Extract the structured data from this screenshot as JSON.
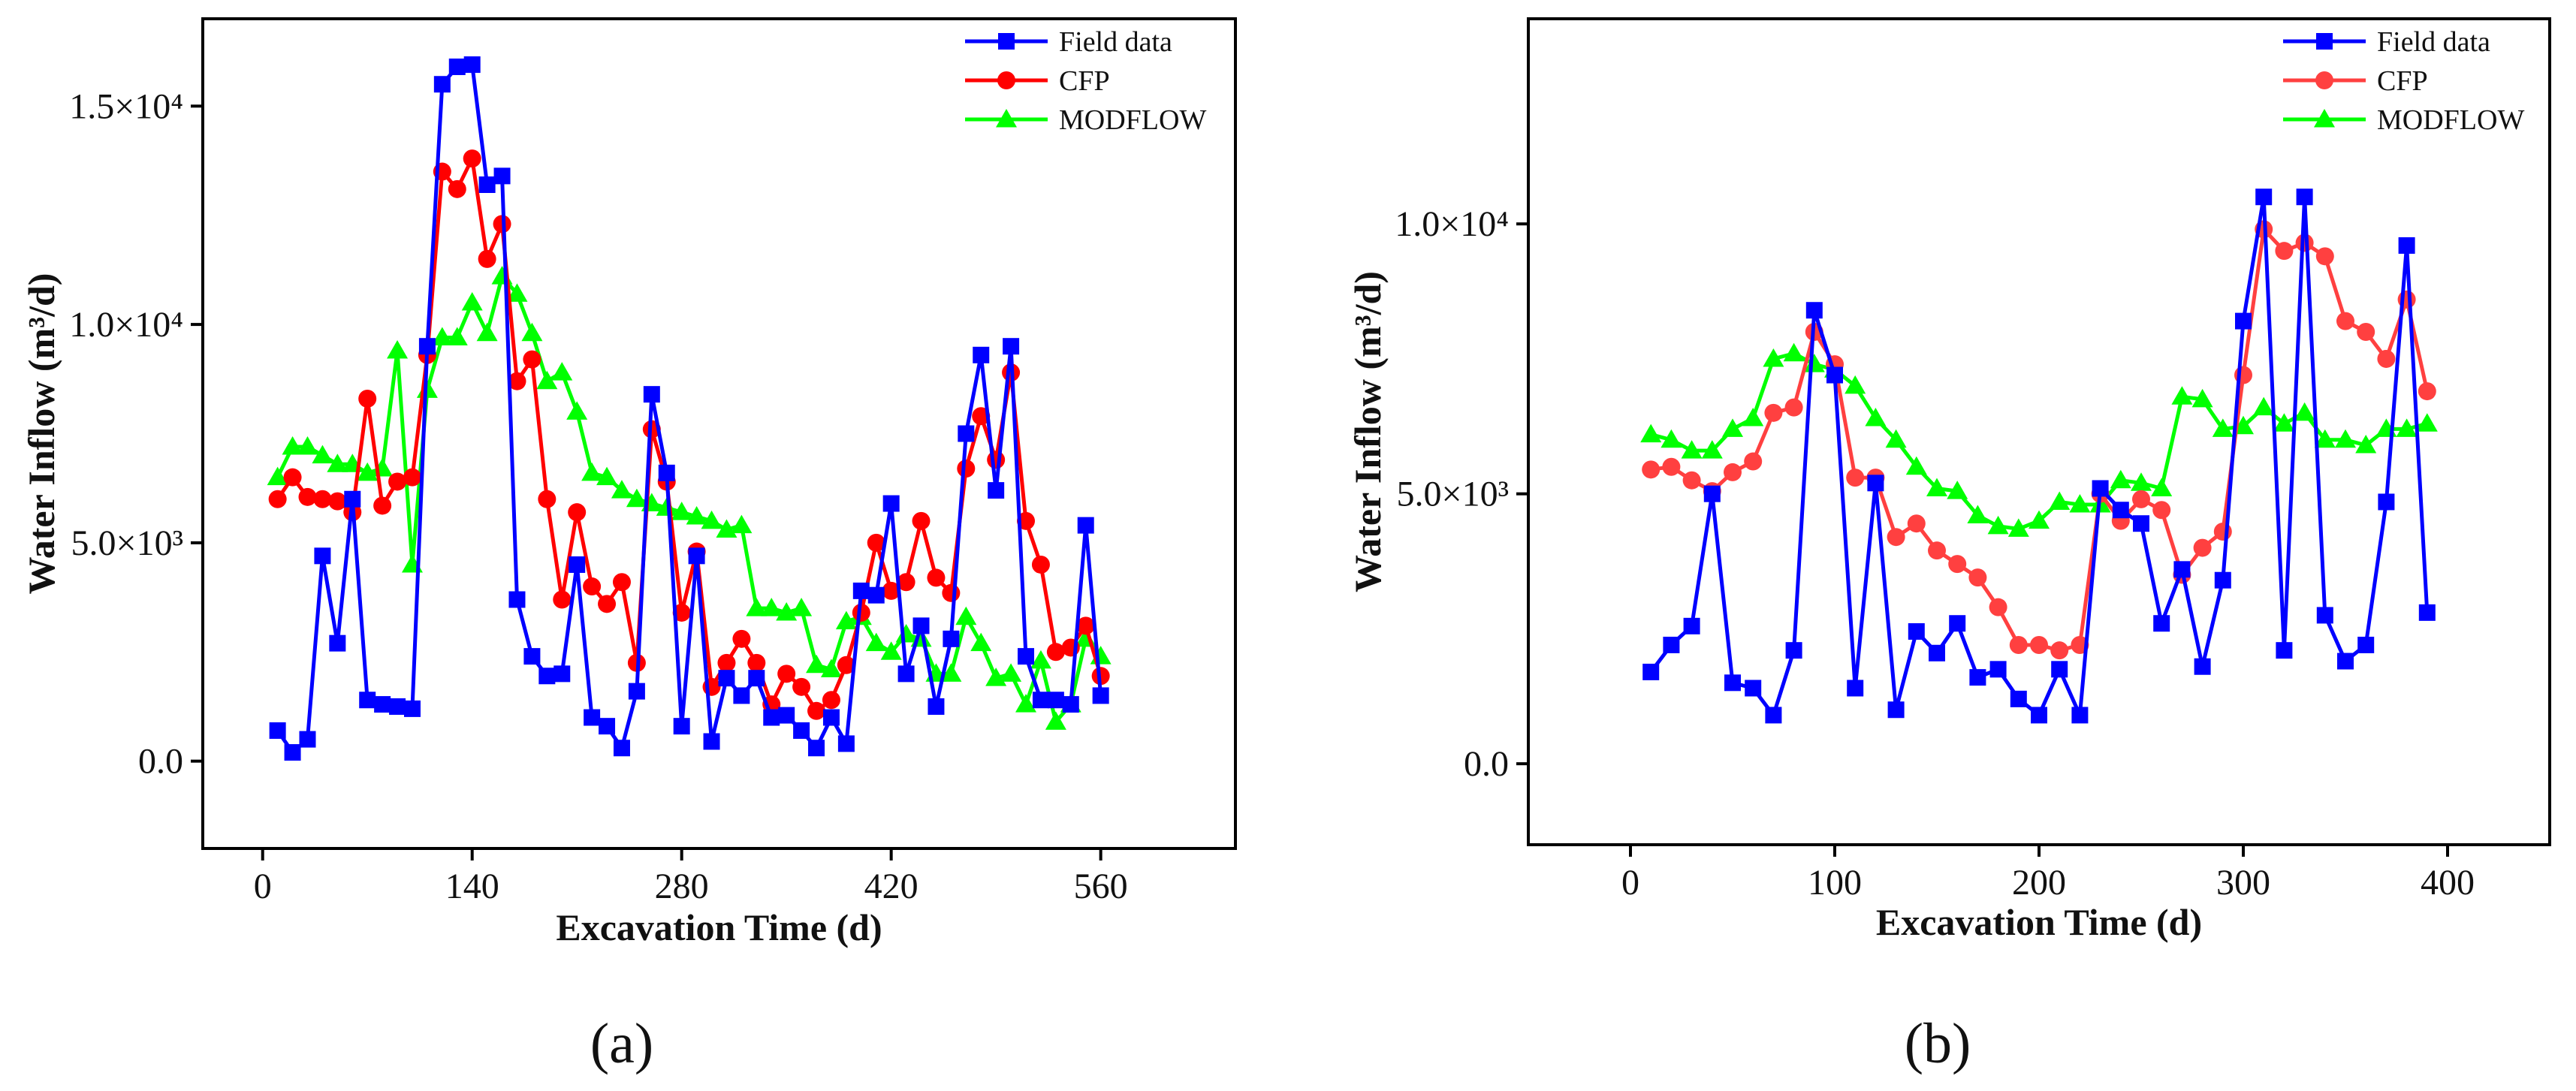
{
  "chart_data": [
    {
      "panel_label": "(a)",
      "type": "line",
      "xlabel": "Excavation Time (d)",
      "ylabel": "Water Inflow (m³/d)",
      "xlim": [
        -40,
        650
      ],
      "ylim": [
        -2000,
        17000
      ],
      "xticks": [
        0,
        140,
        280,
        420,
        560
      ],
      "xtick_labels": [
        "0",
        "140",
        "280",
        "420",
        "560"
      ],
      "yticks": [
        0,
        5000,
        10000,
        15000
      ],
      "ytick_labels": [
        "0.0",
        "5.0×10³",
        "1.0×10⁴",
        "1.5×10⁴"
      ],
      "grid": false,
      "legend": "top-right",
      "series": [
        {
          "name": "Field data",
          "color": "#0000ff",
          "marker": "square",
          "x": [
            10,
            20,
            30,
            40,
            50,
            60,
            70,
            80,
            90,
            100,
            110,
            120,
            130,
            140,
            150,
            160,
            170,
            180,
            190,
            200,
            210,
            220,
            230,
            240,
            250,
            260,
            270,
            280,
            290,
            300,
            310,
            320,
            330,
            340,
            350,
            360,
            370,
            380,
            390,
            400,
            410,
            420,
            430,
            440,
            450,
            460,
            470,
            480,
            490,
            500,
            510,
            520,
            530,
            540,
            550,
            560
          ],
          "values": [
            700,
            200,
            500,
            4700,
            2700,
            6000,
            1400,
            1300,
            1250,
            1200,
            9500,
            15500,
            15900,
            15950,
            13200,
            13400,
            3700,
            2400,
            1950,
            2000,
            4500,
            1000,
            800,
            300,
            1600,
            8400,
            6600,
            800,
            4700,
            450,
            1900,
            1500,
            1900,
            1000,
            1050,
            700,
            300,
            1000,
            400,
            3900,
            3800,
            5900,
            2000,
            3100,
            1250,
            2800,
            7500,
            9300,
            6200,
            9500,
            2400,
            1400,
            1400,
            1300,
            5400,
            1500
          ]
        },
        {
          "name": "CFP",
          "color": "#ff0000",
          "marker": "circle",
          "x": [
            10,
            20,
            30,
            40,
            50,
            60,
            70,
            80,
            90,
            100,
            110,
            120,
            130,
            140,
            150,
            160,
            170,
            180,
            190,
            200,
            210,
            220,
            230,
            240,
            250,
            260,
            270,
            280,
            290,
            300,
            310,
            320,
            330,
            340,
            350,
            360,
            370,
            380,
            390,
            400,
            410,
            420,
            430,
            440,
            450,
            460,
            470,
            480,
            490,
            500,
            510,
            520,
            530,
            540,
            550,
            560
          ],
          "values": [
            6000,
            6500,
            6050,
            6000,
            5950,
            5700,
            8300,
            5850,
            6400,
            6500,
            9300,
            13500,
            13100,
            13800,
            11500,
            12300,
            8700,
            9200,
            6000,
            3700,
            5700,
            4000,
            3600,
            4100,
            2250,
            7600,
            6400,
            3400,
            4800,
            1700,
            2250,
            2800,
            2250,
            1300,
            2000,
            1700,
            1150,
            1400,
            2200,
            3400,
            5000,
            3900,
            4100,
            5500,
            4200,
            3850,
            6700,
            7900,
            6900,
            8900,
            5500,
            4500,
            2500,
            2600,
            3100,
            1950
          ]
        },
        {
          "name": "MODFLOW",
          "color": "#00ff00",
          "marker": "triangle",
          "x": [
            10,
            20,
            30,
            40,
            50,
            60,
            70,
            80,
            90,
            100,
            110,
            120,
            130,
            140,
            150,
            160,
            170,
            180,
            190,
            200,
            210,
            220,
            230,
            240,
            250,
            260,
            270,
            280,
            290,
            300,
            310,
            320,
            330,
            340,
            350,
            360,
            370,
            380,
            390,
            400,
            410,
            420,
            430,
            440,
            450,
            460,
            470,
            480,
            490,
            500,
            510,
            520,
            530,
            540,
            550,
            560
          ],
          "values": [
            6500,
            7200,
            7200,
            7000,
            6800,
            6800,
            6600,
            6700,
            9400,
            4500,
            8500,
            9700,
            9700,
            10500,
            9800,
            11100,
            10700,
            9800,
            8700,
            8900,
            8000,
            6600,
            6500,
            6200,
            6000,
            5900,
            5800,
            5700,
            5600,
            5500,
            5300,
            5400,
            3500,
            3500,
            3400,
            3500,
            2200,
            2100,
            3200,
            3300,
            2700,
            2500,
            2900,
            2800,
            2000,
            2000,
            3300,
            2700,
            1900,
            2000,
            1300,
            2300,
            900,
            1300,
            2800,
            2400
          ]
        }
      ]
    },
    {
      "panel_label": "(b)",
      "type": "line",
      "xlabel": "Excavation Time (d)",
      "ylabel": "Water Inflow (m³/d)",
      "xlim": [
        -50,
        450
      ],
      "ylim": [
        -1500,
        13800
      ],
      "xticks": [
        0,
        100,
        200,
        300,
        400
      ],
      "xtick_labels": [
        "0",
        "100",
        "200",
        "300",
        "400"
      ],
      "yticks": [
        0,
        5000,
        10000
      ],
      "ytick_labels": [
        "0.0",
        "5.0×10³",
        "1.0×10⁴"
      ],
      "grid": false,
      "legend": "top-right",
      "series": [
        {
          "name": "Field data",
          "color": "#0000ff",
          "marker": "square",
          "x": [
            10,
            20,
            30,
            40,
            50,
            60,
            70,
            80,
            90,
            100,
            110,
            120,
            130,
            140,
            150,
            160,
            170,
            180,
            190,
            200,
            210,
            220,
            230,
            240,
            250,
            260,
            270,
            280,
            290,
            300,
            310,
            320,
            330,
            340,
            350,
            360,
            370,
            380,
            390
          ],
          "values": [
            1700,
            2200,
            2550,
            5000,
            1500,
            1400,
            900,
            2100,
            8400,
            7200,
            1400,
            5200,
            1000,
            2450,
            2050,
            2600,
            1600,
            1750,
            1200,
            900,
            1750,
            900,
            5100,
            4700,
            4450,
            2600,
            3600,
            1800,
            3400,
            8200,
            10500,
            2100,
            10500,
            2750,
            1900,
            2200,
            4850,
            9600,
            2800
          ]
        },
        {
          "name": "CFP",
          "color": "#ff4040",
          "marker": "circle",
          "x": [
            10,
            20,
            30,
            40,
            50,
            60,
            70,
            80,
            90,
            100,
            110,
            120,
            130,
            140,
            150,
            160,
            170,
            180,
            190,
            200,
            210,
            220,
            230,
            240,
            250,
            260,
            270,
            280,
            290,
            300,
            310,
            320,
            330,
            340,
            350,
            360,
            370,
            380,
            390
          ],
          "values": [
            5450,
            5500,
            5250,
            5050,
            5400,
            5600,
            6500,
            6600,
            8000,
            7400,
            5300,
            5300,
            4200,
            4450,
            3950,
            3700,
            3450,
            2900,
            2200,
            2200,
            2100,
            2200,
            5000,
            4500,
            4900,
            4700,
            3500,
            4000,
            4300,
            7200,
            9900,
            9500,
            9650,
            9400,
            8200,
            8000,
            7500,
            8600,
            6900
          ]
        },
        {
          "name": "MODFLOW",
          "color": "#00ff00",
          "marker": "triangle",
          "x": [
            10,
            20,
            30,
            40,
            50,
            60,
            70,
            80,
            90,
            100,
            110,
            120,
            130,
            140,
            150,
            160,
            170,
            180,
            190,
            200,
            210,
            220,
            230,
            240,
            250,
            260,
            270,
            280,
            290,
            300,
            310,
            320,
            330,
            340,
            350,
            360,
            370,
            380,
            390
          ],
          "values": [
            6100,
            6000,
            5800,
            5800,
            6200,
            6400,
            7500,
            7600,
            7400,
            7300,
            7000,
            6400,
            6000,
            5500,
            5100,
            5050,
            4600,
            4400,
            4350,
            4500,
            4850,
            4800,
            4800,
            5250,
            5200,
            5100,
            6800,
            6750,
            6200,
            6250,
            6600,
            6300,
            6500,
            6000,
            6000,
            5900,
            6200,
            6200,
            6300
          ]
        }
      ]
    }
  ]
}
